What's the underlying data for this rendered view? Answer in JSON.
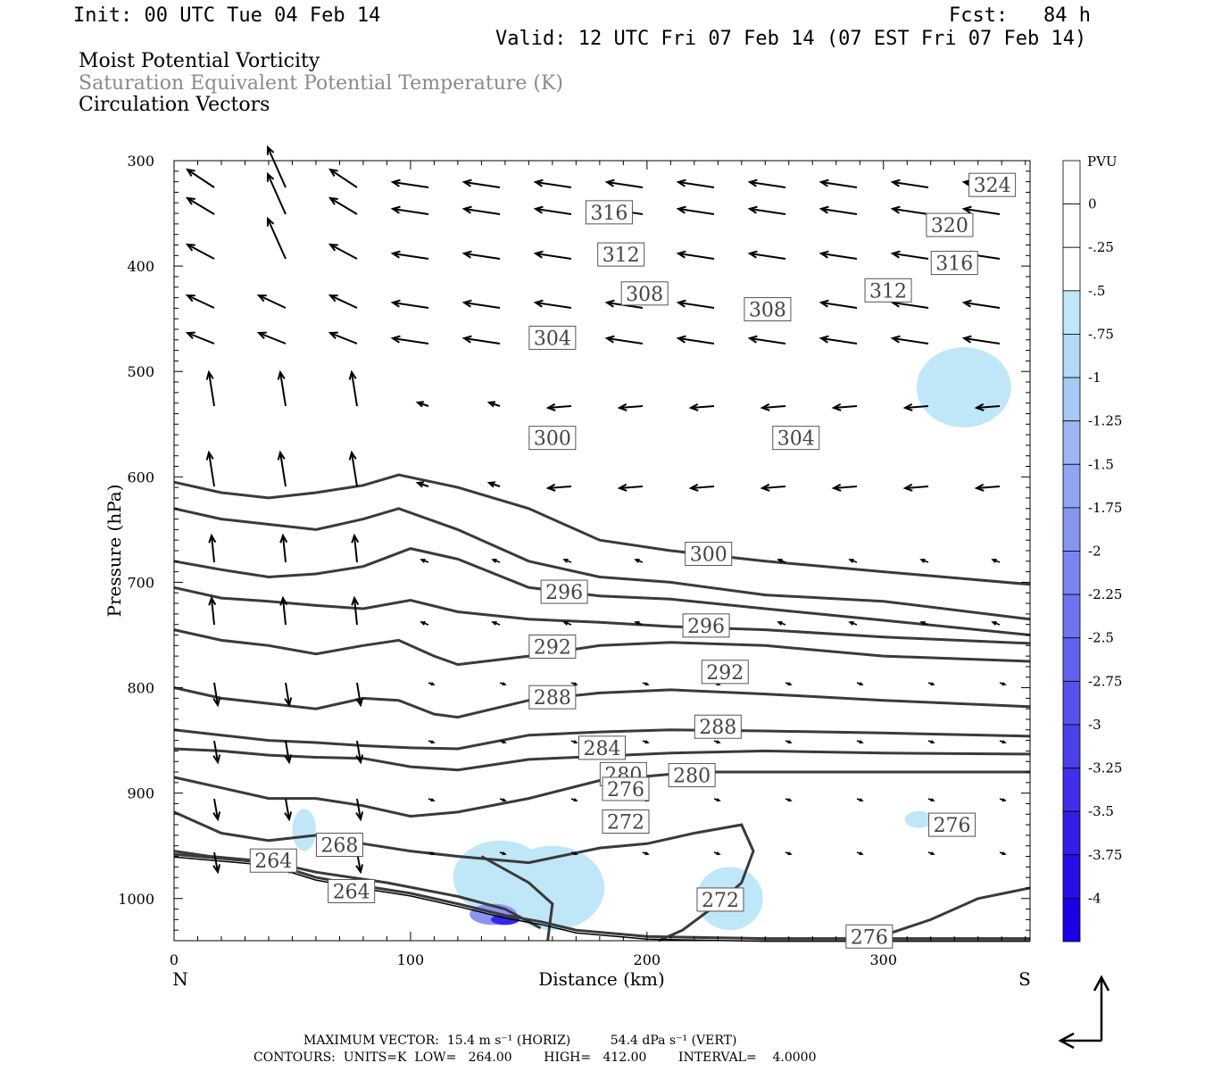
{
  "header": {
    "init": "Init: 00 UTC Tue 04 Feb 14",
    "fcst": "Fcst:   84 h",
    "valid": "Valid: 12 UTC Fri 07 Feb 14 (07 EST Fri 07 Feb 14)",
    "field1": "Moist Potential Vorticity",
    "field2": "Saturation Equivalent Potential Temperature (K)",
    "field3": "Circulation Vectors"
  },
  "footer": {
    "max_vector": "MAXIMUM VECTOR:  15.4 m s⁻¹ (HORIZ)          54.4 dPa s⁻¹ (VERT)",
    "contours": "CONTOURS:  UNITS=K  LOW=   264.00        HIGH=   412.00        INTERVAL=    4.0000"
  },
  "chart_data": {
    "type": "contour",
    "xlabel": "Distance (km)",
    "ylabel": "Pressure (hPa)",
    "xlim": [
      0,
      362
    ],
    "ylim": [
      1040,
      300
    ],
    "x_ticks": [
      0,
      100,
      200,
      300
    ],
    "y_ticks": [
      300,
      400,
      500,
      600,
      700,
      800,
      900,
      1000
    ],
    "x_end_labels": {
      "left": "N",
      "right": "S"
    },
    "colorbar": {
      "unit": "PVU",
      "levels": [
        "0",
        "-.25",
        "-.5",
        "-.75",
        "-1",
        "-1.25",
        "-1.5",
        "-1.75",
        "-2",
        "-2.25",
        "-2.5",
        "-2.75",
        "-3",
        "-3.25",
        "-3.5",
        "-3.75",
        "-4"
      ],
      "colors": [
        "#ffffff",
        "#ffffff",
        "#bfe7f8",
        "#b4d9f6",
        "#a8c8f5",
        "#9cb7f3",
        "#90a6f2",
        "#8795f1",
        "#7b84f0",
        "#6f73ee",
        "#6362ed",
        "#5751eb",
        "#4b40ea",
        "#3f2fe8",
        "#331ee7",
        "#270de6",
        "#1a00e5"
      ]
    },
    "contour_lines": [
      {
        "level": 264,
        "points": [
          [
            0,
            958
          ],
          [
            20,
            962
          ],
          [
            40,
            966
          ],
          [
            60,
            980
          ],
          [
            80,
            988
          ],
          [
            100,
            995
          ],
          [
            120,
            1005
          ],
          [
            140,
            1016
          ],
          [
            155,
            1022
          ],
          [
            170,
            1030
          ],
          [
            200,
            1036
          ],
          [
            250,
            1038
          ],
          [
            300,
            1038
          ],
          [
            362,
            1038
          ]
        ]
      },
      {
        "level": 268,
        "points": [
          [
            0,
            955
          ],
          [
            15,
            960
          ],
          [
            40,
            965
          ],
          [
            60,
            975
          ],
          [
            90,
            985
          ],
          [
            120,
            998
          ],
          [
            140,
            1010
          ],
          [
            155,
            1028
          ]
        ]
      },
      {
        "level": 272,
        "points": [
          [
            0,
            918
          ],
          [
            20,
            938
          ],
          [
            40,
            945
          ],
          [
            60,
            940
          ],
          [
            80,
            948
          ],
          [
            100,
            955
          ],
          [
            120,
            960
          ],
          [
            150,
            966
          ],
          [
            180,
            952
          ],
          [
            200,
            948
          ],
          [
            220,
            938
          ],
          [
            240,
            930
          ],
          [
            245,
            955
          ],
          [
            240,
            985
          ],
          [
            230,
            1005
          ],
          [
            215,
            1030
          ],
          [
            205,
            1040
          ]
        ]
      },
      {
        "level": 272,
        "points": [
          [
            130,
            960
          ],
          [
            150,
            985
          ],
          [
            160,
            1005
          ],
          [
            158,
            1040
          ]
        ]
      },
      {
        "level": 276,
        "points": [
          [
            0,
            885
          ],
          [
            20,
            895
          ],
          [
            40,
            905
          ],
          [
            60,
            905
          ],
          [
            80,
            912
          ],
          [
            100,
            922
          ],
          [
            120,
            918
          ],
          [
            150,
            905
          ],
          [
            180,
            888
          ],
          [
            220,
            880
          ],
          [
            260,
            880
          ],
          [
            300,
            880
          ],
          [
            330,
            880
          ],
          [
            362,
            880
          ]
        ]
      },
      {
        "level": 276,
        "points": [
          [
            300,
            1035
          ],
          [
            320,
            1020
          ],
          [
            340,
            1000
          ],
          [
            362,
            990
          ]
        ]
      },
      {
        "level": 280,
        "points": [
          [
            0,
            858
          ],
          [
            20,
            860
          ],
          [
            40,
            864
          ],
          [
            60,
            866
          ],
          [
            80,
            867
          ],
          [
            100,
            875
          ],
          [
            120,
            878
          ],
          [
            150,
            868
          ],
          [
            180,
            865
          ],
          [
            210,
            862
          ],
          [
            250,
            860
          ],
          [
            300,
            862
          ],
          [
            362,
            863
          ]
        ]
      },
      {
        "level": 284,
        "points": [
          [
            0,
            840
          ],
          [
            20,
            845
          ],
          [
            40,
            850
          ],
          [
            60,
            852
          ],
          [
            80,
            855
          ],
          [
            100,
            857
          ],
          [
            120,
            858
          ],
          [
            150,
            845
          ],
          [
            180,
            842
          ],
          [
            210,
            840
          ],
          [
            250,
            841
          ],
          [
            300,
            843
          ],
          [
            362,
            846
          ]
        ]
      },
      {
        "level": 288,
        "points": [
          [
            0,
            800
          ],
          [
            20,
            810
          ],
          [
            40,
            815
          ],
          [
            60,
            820
          ],
          [
            80,
            810
          ],
          [
            95,
            812
          ],
          [
            110,
            825
          ],
          [
            120,
            828
          ],
          [
            150,
            812
          ],
          [
            180,
            805
          ],
          [
            210,
            802
          ],
          [
            250,
            806
          ],
          [
            300,
            812
          ],
          [
            362,
            818
          ]
        ]
      },
      {
        "level": 292,
        "points": [
          [
            0,
            745
          ],
          [
            20,
            755
          ],
          [
            40,
            760
          ],
          [
            60,
            768
          ],
          [
            80,
            760
          ],
          [
            95,
            755
          ],
          [
            110,
            770
          ],
          [
            120,
            778
          ],
          [
            150,
            770
          ],
          [
            180,
            760
          ],
          [
            210,
            757
          ],
          [
            250,
            760
          ],
          [
            300,
            770
          ],
          [
            362,
            775
          ]
        ]
      },
      {
        "level": 296,
        "points": [
          [
            0,
            705
          ],
          [
            20,
            715
          ],
          [
            40,
            718
          ],
          [
            60,
            722
          ],
          [
            80,
            725
          ],
          [
            100,
            717
          ],
          [
            120,
            728
          ],
          [
            150,
            735
          ],
          [
            180,
            738
          ],
          [
            210,
            742
          ],
          [
            250,
            745
          ],
          [
            300,
            752
          ],
          [
            362,
            758
          ]
        ]
      },
      {
        "level": 300,
        "points": [
          [
            0,
            680
          ],
          [
            20,
            688
          ],
          [
            40,
            695
          ],
          [
            60,
            692
          ],
          [
            80,
            685
          ],
          [
            100,
            668
          ],
          [
            120,
            678
          ],
          [
            150,
            705
          ],
          [
            180,
            713
          ],
          [
            210,
            716
          ],
          [
            250,
            725
          ],
          [
            300,
            736
          ],
          [
            362,
            750
          ]
        ]
      },
      {
        "level": 304,
        "points": [
          [
            0,
            630
          ],
          [
            20,
            640
          ],
          [
            40,
            645
          ],
          [
            60,
            650
          ],
          [
            80,
            640
          ],
          [
            95,
            630
          ],
          [
            120,
            650
          ],
          [
            150,
            680
          ],
          [
            180,
            695
          ],
          [
            210,
            700
          ],
          [
            250,
            712
          ],
          [
            300,
            718
          ],
          [
            362,
            735
          ]
        ]
      },
      {
        "level": 308,
        "points": [
          [
            0,
            605
          ],
          [
            20,
            615
          ],
          [
            40,
            620
          ],
          [
            60,
            615
          ],
          [
            80,
            608
          ],
          [
            95,
            598
          ],
          [
            120,
            610
          ],
          [
            150,
            630
          ],
          [
            180,
            660
          ],
          [
            210,
            670
          ],
          [
            250,
            680
          ],
          [
            300,
            690
          ],
          [
            362,
            702
          ]
        ]
      }
    ],
    "contour_labels": [
      {
        "level": 324,
        "x": 346,
        "p": 323
      },
      {
        "level": 320,
        "x": 328,
        "p": 361
      },
      {
        "level": 316,
        "x": 184,
        "p": 349
      },
      {
        "level": 316,
        "x": 330,
        "p": 397
      },
      {
        "level": 312,
        "x": 189,
        "p": 389
      },
      {
        "level": 312,
        "x": 302,
        "p": 423
      },
      {
        "level": 308,
        "x": 199,
        "p": 426
      },
      {
        "level": 308,
        "x": 251,
        "p": 441
      },
      {
        "level": 304,
        "x": 160,
        "p": 468
      },
      {
        "level": 304,
        "x": 263,
        "p": 563
      },
      {
        "level": 300,
        "x": 160,
        "p": 563
      },
      {
        "level": 300,
        "x": 226,
        "p": 673
      },
      {
        "level": 296,
        "x": 165,
        "p": 709
      },
      {
        "level": 296,
        "x": 225,
        "p": 741
      },
      {
        "level": 292,
        "x": 160,
        "p": 761
      },
      {
        "level": 292,
        "x": 233,
        "p": 785
      },
      {
        "level": 288,
        "x": 160,
        "p": 809
      },
      {
        "level": 288,
        "x": 230,
        "p": 837
      },
      {
        "level": 284,
        "x": 181,
        "p": 857
      },
      {
        "level": 280,
        "x": 190,
        "p": 882
      },
      {
        "level": 280,
        "x": 219,
        "p": 883
      },
      {
        "level": 276,
        "x": 191,
        "p": 896
      },
      {
        "level": 276,
        "x": 329,
        "p": 930
      },
      {
        "level": 272,
        "x": 191,
        "p": 927
      },
      {
        "level": 272,
        "x": 231,
        "p": 1001
      },
      {
        "level": 276,
        "x": 294,
        "p": 1036
      },
      {
        "level": 268,
        "x": 70,
        "p": 949
      },
      {
        "level": 264,
        "x": 42,
        "p": 964
      },
      {
        "level": 264,
        "x": 75,
        "p": 993
      }
    ],
    "pv_shading": [
      {
        "pvu": -0.25,
        "center": [
          334,
          515
        ],
        "rx": 20,
        "ry": 38
      },
      {
        "pvu": -0.25,
        "center": [
          138,
          980
        ],
        "rx": 20,
        "ry": 35
      },
      {
        "pvu": -0.25,
        "center": [
          160,
          990
        ],
        "rx": 22,
        "ry": 40
      },
      {
        "pvu": -0.25,
        "center": [
          235,
          1000
        ],
        "rx": 14,
        "ry": 30
      },
      {
        "pvu": -0.25,
        "center": [
          315,
          925
        ],
        "rx": 6,
        "ry": 8
      },
      {
        "pvu": -0.25,
        "center": [
          55,
          935
        ],
        "rx": 5,
        "ry": 20
      },
      {
        "pvu": -1.5,
        "center": [
          135,
          1015
        ],
        "rx": 10,
        "ry": 10
      },
      {
        "pvu": -3.0,
        "center": [
          140,
          1020
        ],
        "rx": 6,
        "ry": 5
      }
    ],
    "vector_legend": {
      "horiz_max": "15.4 m s⁻¹",
      "vert_max": "54.4 dPa s⁻¹"
    }
  }
}
